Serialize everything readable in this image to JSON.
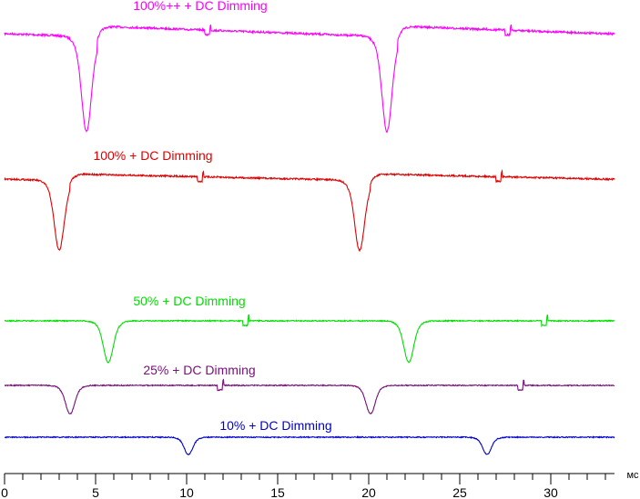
{
  "chart_data": {
    "type": "line",
    "title": "",
    "xlabel": "мс",
    "ylabel": "",
    "xlim": [
      0,
      33.5
    ],
    "x_ticks": [
      0,
      5,
      10,
      15,
      20,
      25,
      30
    ],
    "x_tick_labels": [
      "0",
      "5",
      "10",
      "15",
      "20",
      "25",
      "30"
    ],
    "minor_tick_step": 1,
    "grid": false,
    "legend": "none",
    "series": [
      {
        "name": "100%++ + DC Dimming",
        "color": "#ff00ff",
        "baseline": 4,
        "dips": [
          {
            "center": 4.5,
            "depth": 8.7,
            "width": 0.35
          },
          {
            "center": 21.0,
            "depth": 8.7,
            "width": 0.35
          }
        ]
      },
      {
        "name": "100% + DC Dimming",
        "color": "#e00000",
        "baseline": 2.5,
        "dips": [
          {
            "center": 3.0,
            "depth": 6.4,
            "width": 0.35
          },
          {
            "center": 19.5,
            "depth": 6.4,
            "width": 0.35
          }
        ]
      },
      {
        "name": "50% + DC Dimming",
        "color": "#00dd00",
        "baseline": 0,
        "dips": [
          {
            "center": 5.7,
            "depth": 3.8,
            "width": 0.35
          },
          {
            "center": 22.2,
            "depth": 3.8,
            "width": 0.35
          }
        ]
      },
      {
        "name": "25% + DC Dimming",
        "color": "#7a0e7a",
        "baseline": 0,
        "dips": [
          {
            "center": 3.6,
            "depth": 2.6,
            "width": 0.33
          },
          {
            "center": 20.1,
            "depth": 2.6,
            "width": 0.33
          }
        ]
      },
      {
        "name": "10% + DC Dimming",
        "color": "#0000cc",
        "baseline": 0,
        "dips": [
          {
            "center": 10.1,
            "depth": 1.6,
            "width": 0.3
          },
          {
            "center": 26.5,
            "depth": 1.6,
            "width": 0.3
          }
        ]
      }
    ]
  }
}
